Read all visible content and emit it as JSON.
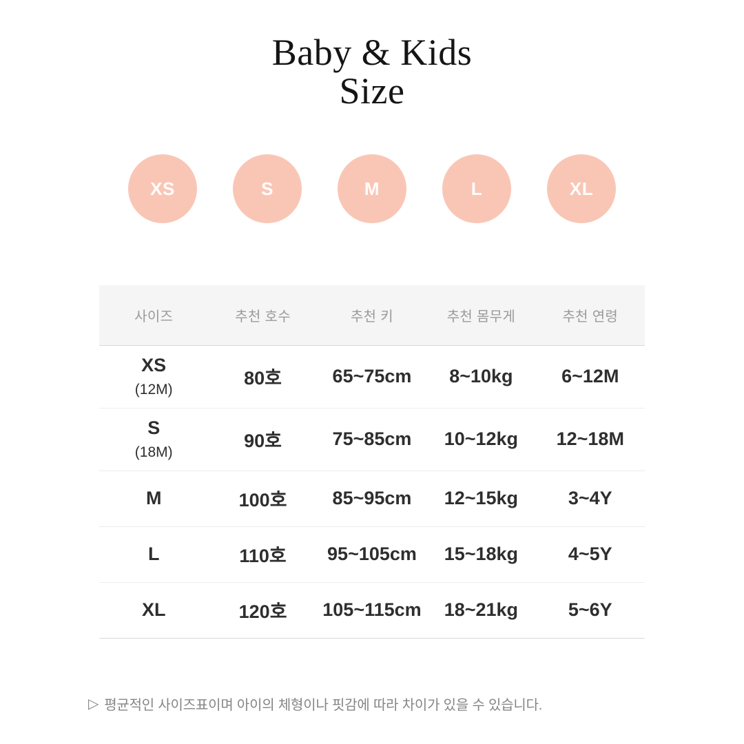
{
  "title": {
    "line1": "Baby & Kids",
    "line2": "Size"
  },
  "size_badges": [
    "XS",
    "S",
    "M",
    "L",
    "XL"
  ],
  "table": {
    "headers": [
      "사이즈",
      "추천 호수",
      "추천 키",
      "추천 몸무게",
      "추천 연령"
    ],
    "rows": [
      {
        "size": "XS",
        "size_sub": "(12M)",
        "hosu": "80호",
        "height": "65~75cm",
        "weight": "8~10kg",
        "age": "6~12M"
      },
      {
        "size": "S",
        "size_sub": "(18M)",
        "hosu": "90호",
        "height": "75~85cm",
        "weight": "10~12kg",
        "age": "12~18M"
      },
      {
        "size": "M",
        "hosu": "100호",
        "height": "85~95cm",
        "weight": "12~15kg",
        "age": "3~4Y"
      },
      {
        "size": "L",
        "hosu": "110호",
        "height": "95~105cm",
        "weight": "15~18kg",
        "age": "4~5Y"
      },
      {
        "size": "XL",
        "hosu": "120호",
        "height": "105~115cm",
        "weight": "18~21kg",
        "age": "5~6Y"
      }
    ]
  },
  "footer": {
    "bullet": "▷",
    "note": "평균적인 사이즈표이며 아이의 체형이나 핏감에 따라 차이가 있을 수 있습니다."
  },
  "colors": {
    "badge_bg": "#F9C6B6",
    "badge_text": "#FFFFFF",
    "header_bg": "#F5F5F5",
    "header_text": "#9A9A9A",
    "cell_text": "#2E2E2E",
    "note_text": "#858585"
  }
}
